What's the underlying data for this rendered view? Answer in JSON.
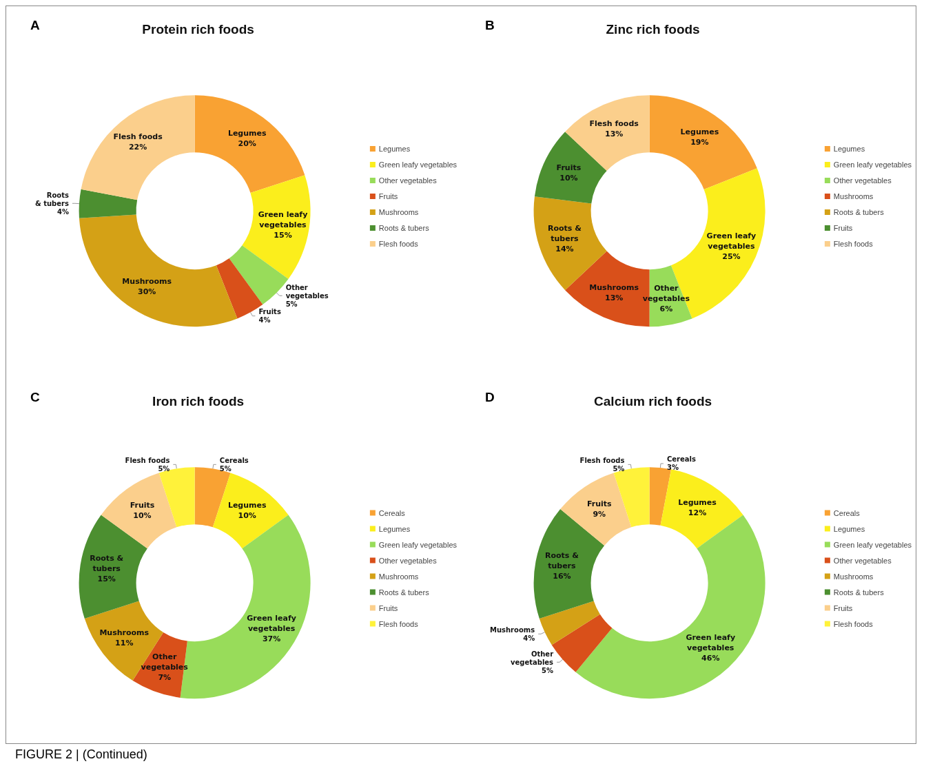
{
  "chart_data": [
    {
      "type": "donut",
      "title": "Protein rich foods",
      "annotations": [
        "A"
      ],
      "legend": "right",
      "categories": [
        "Legumes",
        "Green leafy vegetables",
        "Other vegetables",
        "Fruits",
        "Mushrooms",
        "Roots & tubers",
        "Flesh foods"
      ],
      "values": [
        20,
        15,
        5,
        4,
        30,
        4,
        22
      ],
      "value_labels": [
        "20%",
        "15%",
        "5%",
        "4%",
        "30%",
        "4%",
        "22%"
      ],
      "colors": [
        "#f9a233",
        "#fbee1c",
        "#98dc5a",
        "#d9501a",
        "#d4a116",
        "#4c8f30",
        "#fbcf8c"
      ]
    },
    {
      "type": "donut",
      "title": "Zinc rich foods",
      "annotations": [
        "B"
      ],
      "legend": "right",
      "categories": [
        "Legumes",
        "Green leafy vegetables",
        "Other vegetables",
        "Mushrooms",
        "Roots & tubers",
        "Fruits",
        "Flesh foods"
      ],
      "values": [
        19,
        25,
        6,
        13,
        14,
        10,
        13
      ],
      "value_labels": [
        "19%",
        "25%",
        "6%",
        "13%",
        "14%",
        "10%",
        "13%"
      ],
      "colors": [
        "#f9a233",
        "#fbee1c",
        "#98dc5a",
        "#d9501a",
        "#d4a116",
        "#4c8f30",
        "#fbcf8c"
      ]
    },
    {
      "type": "donut",
      "title": "Iron rich foods",
      "annotations": [
        "C"
      ],
      "legend": "right",
      "categories": [
        "Cereals",
        "Legumes",
        "Green leafy vegetables",
        "Other vegetables",
        "Mushrooms",
        "Roots & tubers",
        "Fruits",
        "Flesh foods"
      ],
      "values": [
        5,
        10,
        37,
        7,
        11,
        15,
        10,
        5
      ],
      "value_labels": [
        "5%",
        "10%",
        "37%",
        "7%",
        "11%",
        "15%",
        "10%",
        "5%"
      ],
      "colors": [
        "#f9a233",
        "#fbee1c",
        "#98dc5a",
        "#d9501a",
        "#d4a116",
        "#4c8f30",
        "#fbcf8c",
        "#fff23a"
      ]
    },
    {
      "type": "donut",
      "title": "Calcium rich foods",
      "annotations": [
        "D",
        "FIGURE 2 | (Continued)"
      ],
      "legend": "right",
      "categories": [
        "Cereals",
        "Legumes",
        "Green leafy vegetables",
        "Other vegetables",
        "Mushrooms",
        "Roots & tubers",
        "Fruits",
        "Flesh foods"
      ],
      "values": [
        3,
        12,
        46,
        5,
        4,
        16,
        9,
        5
      ],
      "value_labels": [
        "3%",
        "12%",
        "46%",
        "5%",
        "4%",
        "16%",
        "9%",
        "5%"
      ],
      "colors": [
        "#f9a233",
        "#fbee1c",
        "#98dc5a",
        "#d9501a",
        "#d4a116",
        "#4c8f30",
        "#fbcf8c",
        "#fff23a"
      ]
    }
  ]
}
